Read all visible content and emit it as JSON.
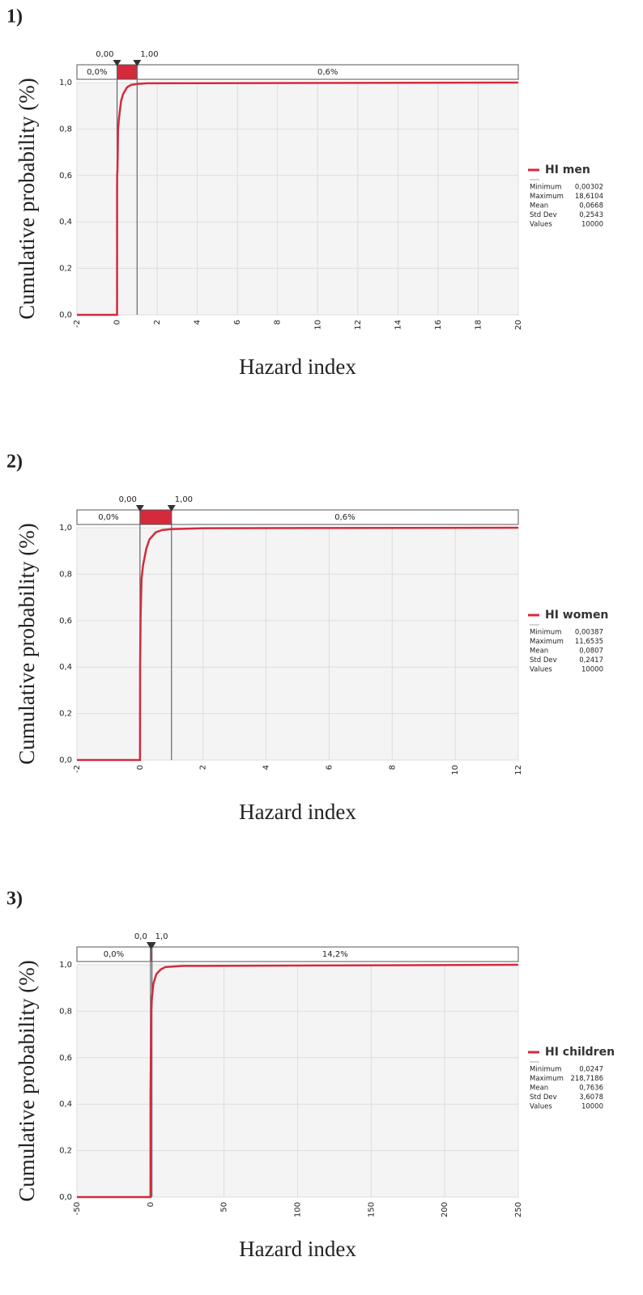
{
  "chart_data": [
    {
      "type": "line",
      "title": "1)",
      "xlabel": "Hazard index",
      "ylabel": "Cumulative probability (%)",
      "x": [
        -2,
        0,
        0.003,
        0.02,
        0.05,
        0.1,
        0.2,
        0.3,
        0.5,
        0.7,
        1,
        1.5,
        20
      ],
      "series": [
        {
          "name": "HI men",
          "color": "#d42a3c",
          "values": [
            0,
            0,
            0.6,
            0.62,
            0.8,
            0.85,
            0.92,
            0.95,
            0.98,
            0.99,
            0.994,
            0.997,
            1.0
          ]
        }
      ],
      "xlim": [
        -2,
        20
      ],
      "xticks": [
        -2,
        0,
        2,
        4,
        6,
        8,
        10,
        12,
        14,
        16,
        18,
        20
      ],
      "ylim": [
        0,
        1.0
      ],
      "yticks": [
        {
          "value": 0,
          "label": "0,0"
        },
        {
          "value": 0.2,
          "label": "0,2"
        },
        {
          "value": 0.4,
          "label": "0,4"
        },
        {
          "value": 0.6,
          "label": "0,6"
        },
        {
          "value": 0.8,
          "label": "0,8"
        },
        {
          "value": 1.0,
          "label": "1,0"
        }
      ],
      "grid": true,
      "delimiters": [
        {
          "value": 0,
          "label": "0,00"
        },
        {
          "value": 1,
          "label": "1,00"
        }
      ],
      "region_labels": [
        "0,0%",
        "0,6%"
      ],
      "stats": [
        {
          "label": "Minimum",
          "value": "0,00302"
        },
        {
          "label": "Maximum",
          "value": "18,6104"
        },
        {
          "label": "Mean",
          "value": "0,0668"
        },
        {
          "label": "Std Dev",
          "value": "0,2543"
        },
        {
          "label": "Values",
          "value": "10000"
        }
      ]
    },
    {
      "type": "line",
      "title": "2)",
      "xlabel": "Hazard index",
      "ylabel": "Cumulative probability (%)",
      "x": [
        -2,
        0,
        0.004,
        0.02,
        0.05,
        0.1,
        0.2,
        0.3,
        0.5,
        0.7,
        1,
        2,
        12
      ],
      "series": [
        {
          "name": "HI women",
          "color": "#d42a3c",
          "values": [
            0,
            0,
            0.4,
            0.62,
            0.78,
            0.84,
            0.91,
            0.95,
            0.98,
            0.99,
            0.994,
            0.998,
            1.0
          ]
        }
      ],
      "xlim": [
        -2,
        12
      ],
      "xticks": [
        -2,
        0,
        2,
        4,
        6,
        8,
        10,
        12
      ],
      "ylim": [
        0,
        1.0
      ],
      "yticks": [
        {
          "value": 0,
          "label": "0,0"
        },
        {
          "value": 0.2,
          "label": "0,2"
        },
        {
          "value": 0.4,
          "label": "0,4"
        },
        {
          "value": 0.6,
          "label": "0,6"
        },
        {
          "value": 0.8,
          "label": "0,8"
        },
        {
          "value": 1.0,
          "label": "1,0"
        }
      ],
      "grid": true,
      "delimiters": [
        {
          "value": 0,
          "label": "0,00"
        },
        {
          "value": 1,
          "label": "1,00"
        }
      ],
      "region_labels": [
        "0,0%",
        "0,6%"
      ],
      "stats": [
        {
          "label": "Minimum",
          "value": "0,00387"
        },
        {
          "label": "Maximum",
          "value": "11,6535"
        },
        {
          "label": "Mean",
          "value": "0,0807"
        },
        {
          "label": "Std Dev",
          "value": "0,2417"
        },
        {
          "label": "Values",
          "value": "10000"
        }
      ]
    },
    {
      "type": "line",
      "title": "3)",
      "xlabel": "Hazard index",
      "ylabel": "Cumulative probability (%)",
      "x": [
        -50,
        0,
        0.03,
        0.5,
        1,
        2,
        4,
        7,
        10,
        22,
        250
      ],
      "series": [
        {
          "name": "HI children",
          "color": "#d42a3c",
          "values": [
            0,
            0,
            0.45,
            0.8,
            0.86,
            0.92,
            0.96,
            0.98,
            0.99,
            0.995,
            1.0
          ]
        }
      ],
      "xlim": [
        -50,
        250
      ],
      "xticks": [
        -50,
        0,
        50,
        100,
        150,
        200,
        250
      ],
      "ylim": [
        0,
        1.0
      ],
      "yticks": [
        {
          "value": 0,
          "label": "0,0"
        },
        {
          "value": 0.2,
          "label": "0,2"
        },
        {
          "value": 0.4,
          "label": "0,4"
        },
        {
          "value": 0.6,
          "label": "0,6"
        },
        {
          "value": 0.8,
          "label": "0,8"
        },
        {
          "value": 1.0,
          "label": "1,0"
        }
      ],
      "grid": true,
      "delimiters": [
        {
          "value": 0,
          "label": "0,0"
        },
        {
          "value": 1,
          "label": "1,0"
        }
      ],
      "region_labels": [
        "0,0%",
        "14,2%"
      ],
      "stats": [
        {
          "label": "Minimum",
          "value": "0,0247"
        },
        {
          "label": "Maximum",
          "value": "218,7186"
        },
        {
          "label": "Mean",
          "value": "0,7636"
        },
        {
          "label": "Std Dev",
          "value": "3,6078"
        },
        {
          "label": "Values",
          "value": "10000"
        }
      ]
    }
  ]
}
